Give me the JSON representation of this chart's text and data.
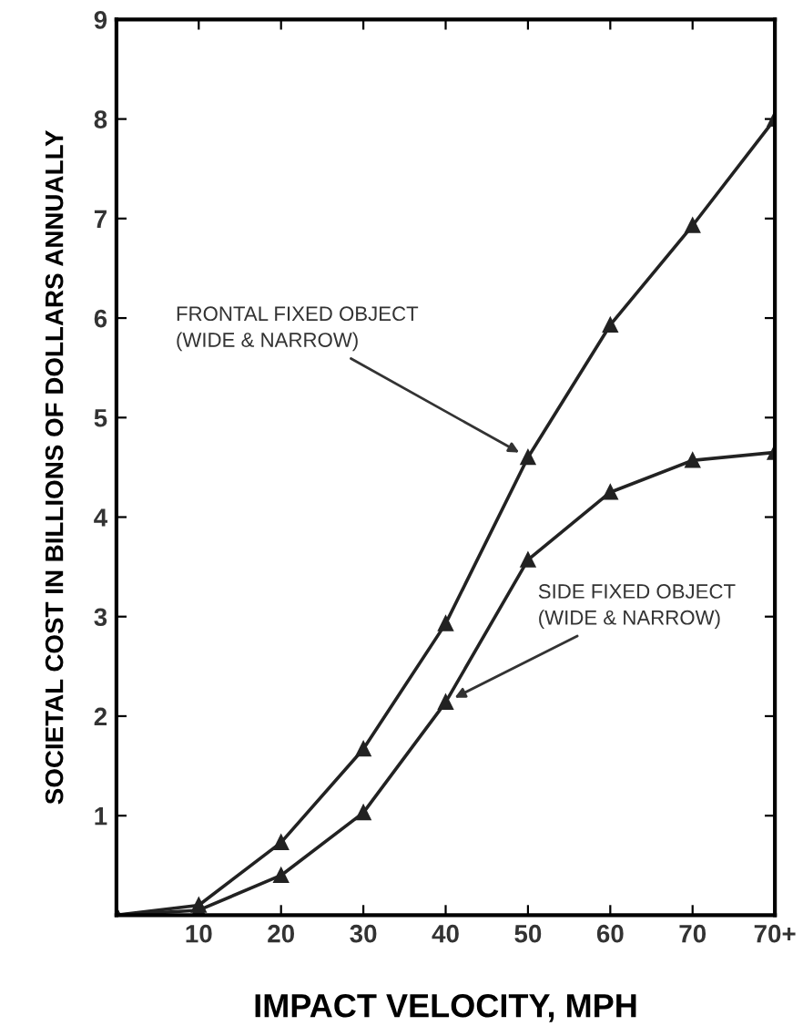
{
  "chart_data": {
    "type": "line",
    "xlabel": "IMPACT VELOCITY, MPH",
    "ylabel": "SOCIETAL COST IN BILLIONS OF DOLLARS ANNUALLY",
    "categories": [
      null,
      "10",
      "20",
      "30",
      "40",
      "50",
      "60",
      "70",
      "70+"
    ],
    "series": [
      {
        "color": "#222222",
        "values": [
          0,
          0.1,
          0.73,
          1.67,
          2.93,
          4.6,
          5.93,
          6.93,
          8.0
        ]
      },
      {
        "color": "#222222",
        "values": [
          0,
          0.05,
          0.4,
          1.03,
          2.14,
          3.57,
          4.25,
          4.57,
          4.65
        ]
      }
    ],
    "annotations": [
      {
        "text": "FRONTAL FIXED OBJECT\n(WIDE & NARROW)",
        "x": "50",
        "y": 4.6
      },
      {
        "text": "SIDE FIXED OBJECT\n(WIDE & NARROW)",
        "x": "40",
        "y": 2.14
      }
    ],
    "ylim": [
      0,
      9
    ],
    "yticks": [
      1,
      2,
      3,
      4,
      5,
      6,
      7,
      8,
      9
    ],
    "marker": "triangle",
    "line_style": "solid",
    "grid": false,
    "legend": false
  }
}
